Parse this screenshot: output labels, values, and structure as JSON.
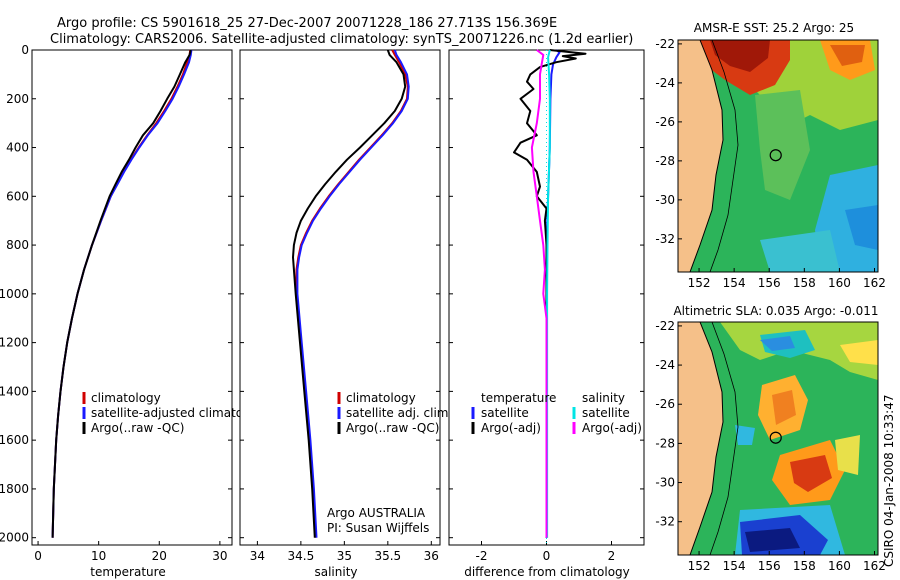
{
  "title_line1": "Argo profile: CS 5901618_25 27-Dec-2007 20071228_186 27.713S 156.369E",
  "title_line2": "Climatology: CARS2006. Satellite-adjusted climatology: synTS_20071226.nc (1.2d earlier)",
  "footer": {
    "org": "Argo AUSTRALIA",
    "pi": "PI: Susan Wijffels",
    "stamp": "CSIRO 04-Jan-2008 10:33:47"
  },
  "colors": {
    "climatology": "#d00000",
    "satellite": "#1a1aff",
    "argo": "#000000",
    "sat_salinity": "#00e5e5",
    "argo_salinity": "#ff00ff",
    "land": "#f5c089"
  },
  "chart_data": [
    {
      "type": "line",
      "name": "temperature-profile",
      "xlabel": "temperature",
      "xlim": [
        -1,
        32
      ],
      "ylim": [
        2030,
        0
      ],
      "xticks": [
        0,
        10,
        20,
        30
      ],
      "yticks": [
        0,
        200,
        400,
        600,
        800,
        1000,
        1200,
        1400,
        1600,
        1800,
        2000
      ],
      "y": [
        0,
        20,
        50,
        100,
        150,
        200,
        250,
        300,
        350,
        400,
        450,
        500,
        550,
        600,
        700,
        800,
        900,
        1000,
        1100,
        1200,
        1300,
        1400,
        1500,
        1600,
        1700,
        1800,
        1900,
        2000
      ],
      "legend": [
        "climatology",
        "satellite-adjusted climatology",
        "Argo(..raw -QC)"
      ],
      "series": [
        {
          "name": "climatology",
          "color": "#d00000",
          "values": [
            25.1,
            25.0,
            24.6,
            23.9,
            23.0,
            22.0,
            20.8,
            19.5,
            18.0,
            16.6,
            15.3,
            14.1,
            13.0,
            12.0,
            10.4,
            8.9,
            7.6,
            6.5,
            5.6,
            4.8,
            4.2,
            3.7,
            3.3,
            3.0,
            2.8,
            2.6,
            2.5,
            2.4
          ]
        },
        {
          "name": "satellite-adjusted climatology",
          "color": "#1a1aff",
          "values": [
            25.3,
            25.2,
            24.9,
            24.1,
            23.2,
            22.2,
            21.0,
            19.7,
            18.1,
            16.7,
            15.4,
            14.2,
            13.1,
            12.0,
            10.4,
            8.9,
            7.6,
            6.5,
            5.6,
            4.8,
            4.2,
            3.7,
            3.3,
            3.0,
            2.8,
            2.6,
            2.5,
            2.4
          ]
        },
        {
          "name": "Argo(..raw -QC)",
          "color": "#000000",
          "values": [
            25.2,
            25.0,
            24.3,
            23.4,
            22.5,
            21.3,
            20.2,
            19.0,
            17.3,
            16.1,
            15.0,
            13.8,
            12.8,
            11.8,
            10.3,
            8.9,
            7.6,
            6.5,
            5.6,
            4.8,
            4.2,
            3.7,
            3.3,
            3.0,
            2.8,
            2.6,
            2.5,
            2.4
          ]
        }
      ]
    },
    {
      "type": "line",
      "name": "salinity-profile",
      "xlabel": "salinity",
      "xlim": [
        33.8,
        36.1
      ],
      "ylim": [
        2030,
        0
      ],
      "xticks": [
        34,
        34.5,
        35,
        35.5,
        36
      ],
      "y": [
        0,
        20,
        50,
        100,
        150,
        200,
        250,
        300,
        350,
        400,
        450,
        500,
        550,
        600,
        650,
        700,
        750,
        800,
        850,
        900,
        1000,
        1200,
        1400,
        1600,
        1800,
        2000
      ],
      "legend": [
        "climatology",
        "satellite adj. clim.",
        "Argo(..raw -QC)"
      ],
      "series": [
        {
          "name": "climatology",
          "color": "#d00000",
          "values": [
            35.55,
            35.58,
            35.63,
            35.7,
            35.73,
            35.72,
            35.65,
            35.55,
            35.43,
            35.3,
            35.17,
            35.05,
            34.93,
            34.82,
            34.72,
            34.63,
            34.56,
            34.5,
            34.47,
            34.45,
            34.45,
            34.5,
            34.55,
            34.6,
            34.64,
            34.67
          ]
        },
        {
          "name": "satellite adj. clim.",
          "color": "#1a1aff",
          "values": [
            35.58,
            35.6,
            35.65,
            35.72,
            35.74,
            35.73,
            35.66,
            35.56,
            35.44,
            35.31,
            35.18,
            35.06,
            34.94,
            34.83,
            34.73,
            34.64,
            34.57,
            34.51,
            34.48,
            34.46,
            34.46,
            34.51,
            34.56,
            34.61,
            34.65,
            34.68
          ]
        },
        {
          "name": "Argo(..raw -QC)",
          "color": "#000000",
          "values": [
            35.5,
            35.52,
            35.6,
            35.68,
            35.7,
            35.66,
            35.58,
            35.46,
            35.32,
            35.18,
            35.03,
            34.9,
            34.78,
            34.67,
            34.58,
            34.5,
            34.45,
            34.42,
            34.41,
            34.42,
            34.44,
            34.49,
            34.54,
            34.59,
            34.63,
            34.66
          ]
        }
      ]
    },
    {
      "type": "line",
      "name": "difference-profile",
      "xlabel": "difference from climatology",
      "xlim": [
        -3,
        3
      ],
      "ylim": [
        2030,
        0
      ],
      "xticks": [
        -2,
        0,
        2
      ],
      "legend_left_title": "temperature",
      "legend_right_title": "salinity",
      "legend_left": [
        "satellite",
        "Argo(-adj)"
      ],
      "legend_right": [
        "satellite",
        "Argo(-adj)"
      ],
      "series": [
        {
          "name": "temperature satellite",
          "color": "#1a1aff",
          "y": [
            0,
            10,
            30,
            60,
            100,
            200,
            400,
            600,
            800,
            1000,
            1500,
            2000
          ],
          "values": [
            0.3,
            0.4,
            0.3,
            0.2,
            0.15,
            0.12,
            0.1,
            0.05,
            0.0,
            0.0,
            0.0,
            0.0
          ]
        },
        {
          "name": "temperature Argo(-adj)",
          "color": "#000000",
          "y": [
            0,
            15,
            25,
            35,
            50,
            70,
            100,
            130,
            160,
            200,
            250,
            300,
            350,
            380,
            420,
            450,
            500,
            560,
            600,
            650,
            700,
            800,
            1000,
            2000
          ],
          "values": [
            0.1,
            1.2,
            0.5,
            0.9,
            0.3,
            -0.2,
            -0.5,
            -0.6,
            -0.4,
            -0.8,
            -0.5,
            -0.6,
            -0.3,
            -0.8,
            -1.0,
            -0.6,
            -0.3,
            -0.2,
            -0.3,
            0.0,
            -0.05,
            0.0,
            0.0,
            0.0
          ]
        },
        {
          "name": "salinity satellite",
          "color": "#00e5e5",
          "y": [
            0,
            30,
            100,
            200,
            400,
            600,
            800,
            1000,
            1500,
            2000
          ],
          "values": [
            0.1,
            0.05,
            0.08,
            0.1,
            0.1,
            0.05,
            0.03,
            0.02,
            0.02,
            0.02
          ]
        },
        {
          "name": "salinity Argo(-adj)",
          "color": "#ff00ff",
          "y": [
            0,
            20,
            60,
            100,
            200,
            300,
            400,
            500,
            600,
            700,
            800,
            900,
            1000,
            1050,
            1100,
            1200,
            1500,
            2000
          ],
          "values": [
            -0.3,
            -0.1,
            -0.15,
            -0.2,
            -0.2,
            -0.3,
            -0.45,
            -0.4,
            -0.3,
            -0.2,
            -0.1,
            -0.05,
            -0.1,
            -0.05,
            0.0,
            0.0,
            0.0,
            0.0
          ]
        }
      ]
    },
    {
      "type": "heatmap",
      "name": "sst-map",
      "title": "AMSR-E SST: 25.2 Argo: 25",
      "xticks": [
        152,
        154,
        156,
        158,
        160,
        162
      ],
      "yticks": [
        -22,
        -24,
        -26,
        -28,
        -30,
        -32
      ],
      "xlim": [
        150.8,
        162.2
      ],
      "ylim": [
        -33.7,
        -21.8
      ],
      "argo_position": [
        156.37,
        -27.71
      ]
    },
    {
      "type": "heatmap",
      "name": "sla-map",
      "title": "Altimetric SLA: 0.035 Argo: -0.011",
      "xticks": [
        152,
        154,
        156,
        158,
        160,
        162
      ],
      "yticks": [
        -22,
        -24,
        -26,
        -28,
        -30,
        -32
      ],
      "xlim": [
        150.8,
        162.2
      ],
      "ylim": [
        -33.7,
        -21.8
      ],
      "argo_position": [
        156.37,
        -27.71
      ]
    }
  ]
}
